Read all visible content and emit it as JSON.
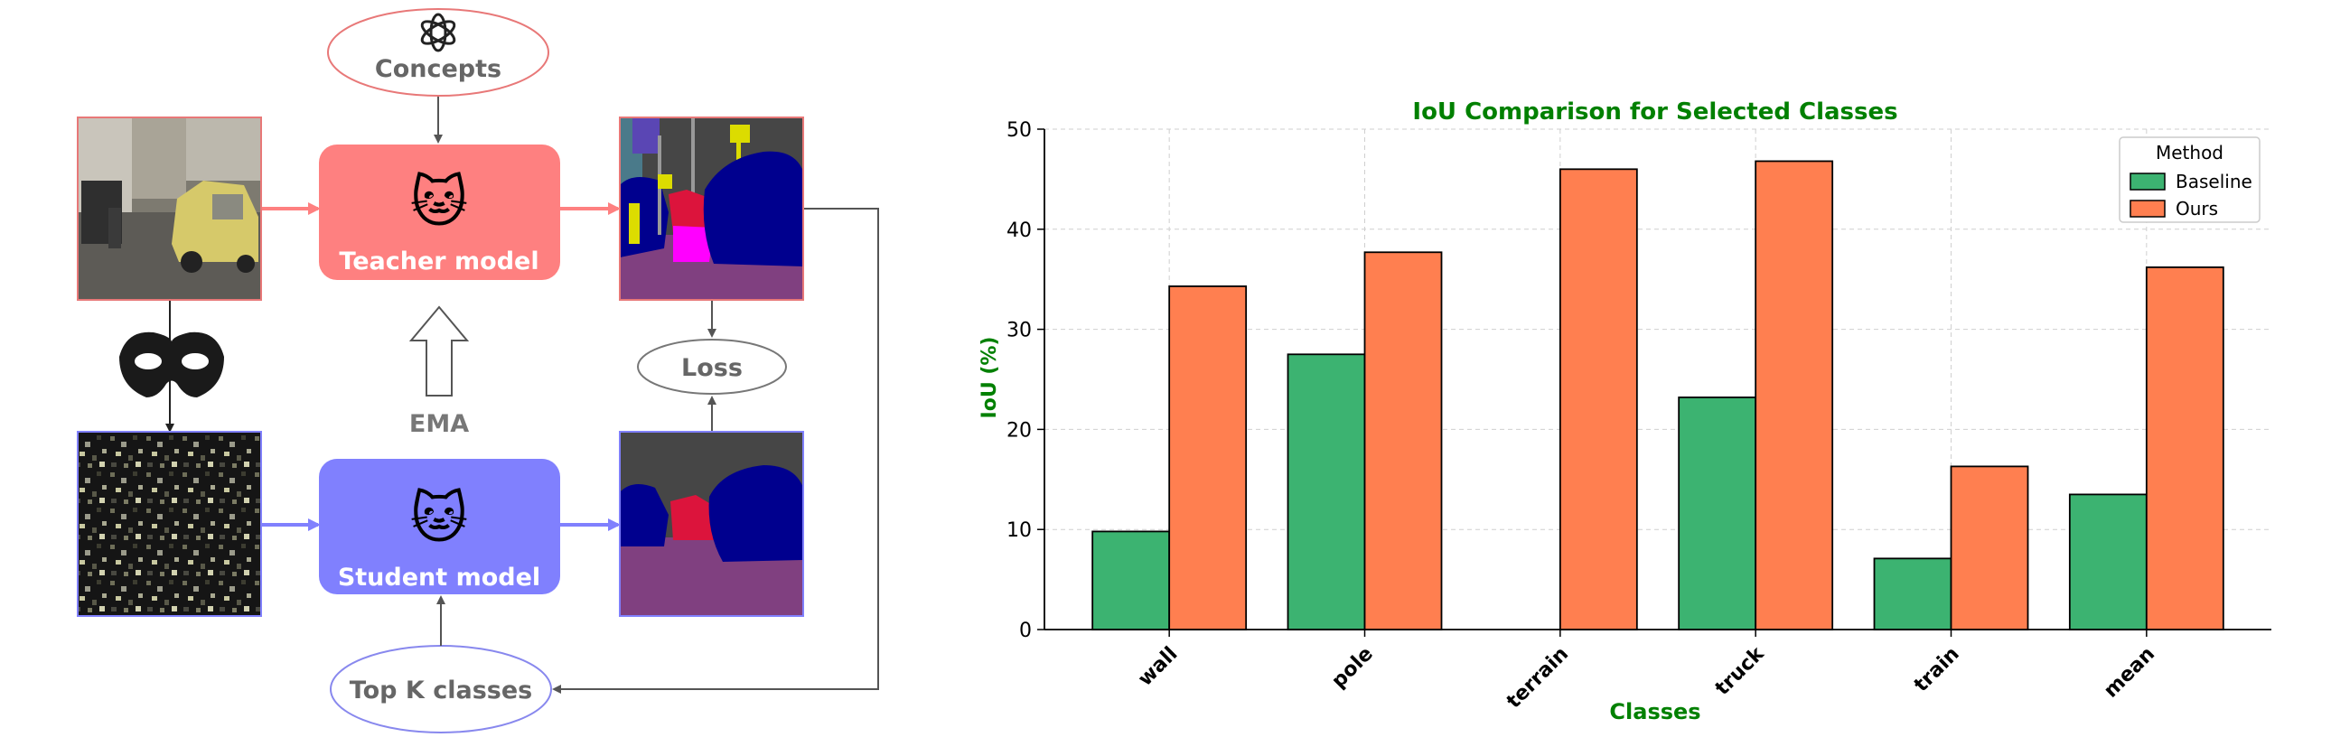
{
  "diagram": {
    "concepts_label": "Concepts",
    "teacher_label": "Teacher model",
    "student_label": "Student model",
    "ema_label": "EMA",
    "loss_label": "Loss",
    "topk_label": "Top K classes",
    "model_emoji": "🐱",
    "icons": [
      "openai-logo-icon",
      "mask-icon",
      "cat-icon"
    ],
    "colors": {
      "teacher": "#fe8080",
      "student": "#8080fe",
      "concepts_border": "#e87878",
      "topk_border": "#8888ee",
      "arrow": "#555555"
    }
  },
  "chart_data": {
    "type": "bar",
    "title": "IoU Comparison for Selected Classes",
    "xlabel": "Classes",
    "ylabel": "IoU (%)",
    "categories": [
      "wall",
      "pole",
      "terrain",
      "truck",
      "train",
      "mean"
    ],
    "series": [
      {
        "name": "Baseline",
        "color": "#3cb371",
        "values": [
          9.8,
          27.5,
          0.0,
          23.2,
          7.1,
          13.5
        ]
      },
      {
        "name": "Ours",
        "color": "#ff7f50",
        "values": [
          34.3,
          37.7,
          46.0,
          46.8,
          16.3,
          36.2
        ]
      }
    ],
    "ylim": [
      0,
      50
    ],
    "yticks": [
      0,
      10,
      20,
      30,
      40,
      50
    ],
    "grid": true,
    "legend": {
      "title": "Method",
      "position": "top-right"
    },
    "label_color": "#008000"
  }
}
